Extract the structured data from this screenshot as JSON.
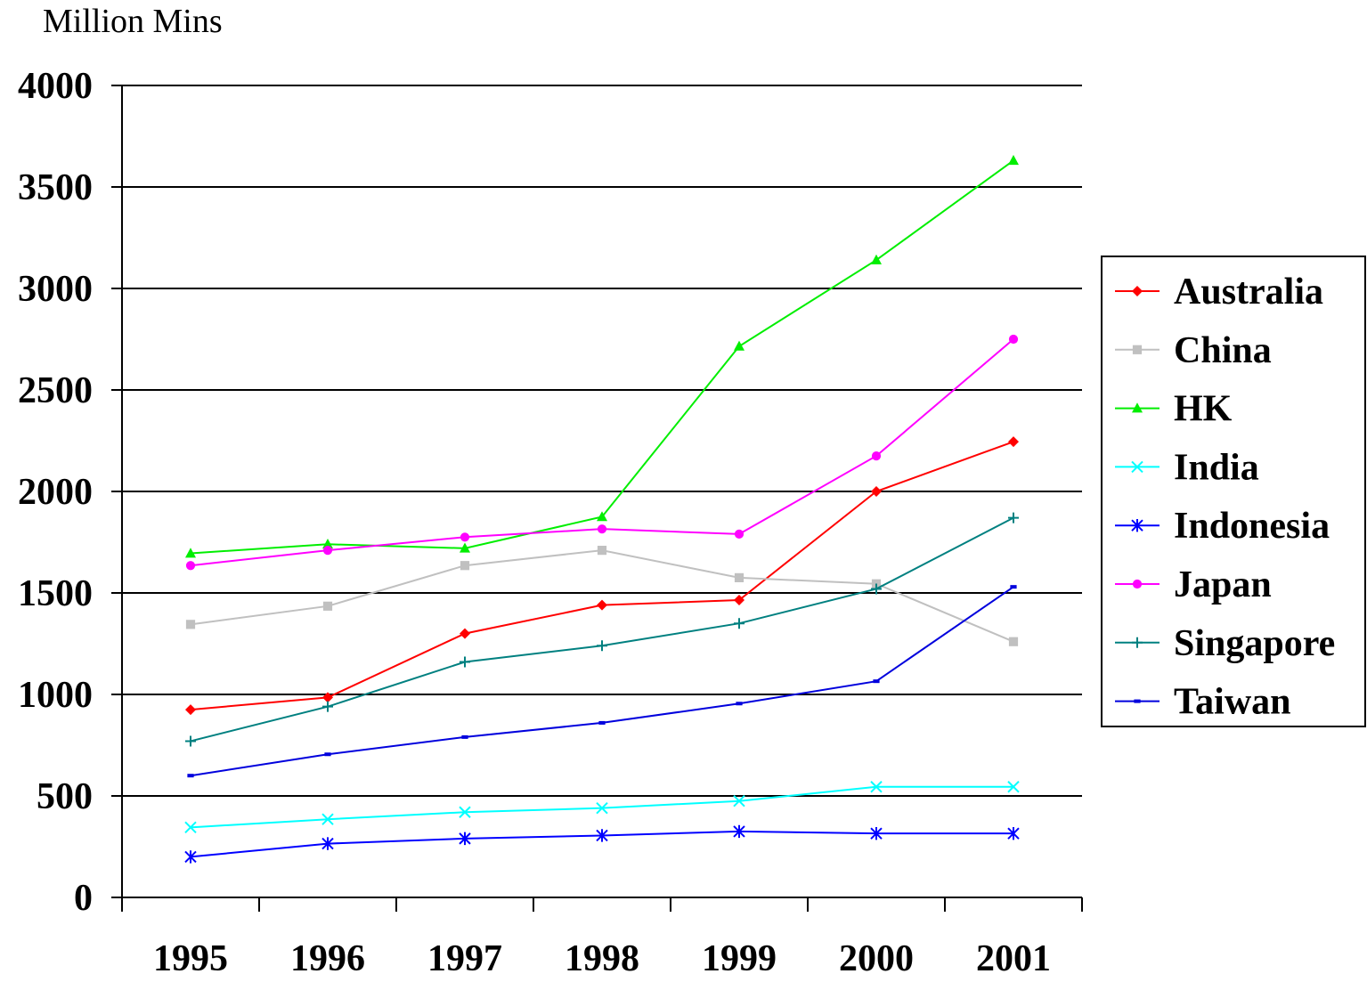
{
  "chart_data": {
    "type": "line",
    "title": "",
    "ylabel": "Million Mins",
    "xlabel": "",
    "categories": [
      "1995",
      "1996",
      "1997",
      "1998",
      "1999",
      "2000",
      "2001"
    ],
    "ylim": [
      0,
      4000
    ],
    "yticks": [
      0,
      500,
      1000,
      1500,
      2000,
      2500,
      3000,
      3500,
      4000
    ],
    "ytick_labels": [
      "0",
      "500",
      "1000",
      "1500",
      "2000",
      "2500",
      "3000",
      "3500",
      "4000"
    ],
    "grid": "horizontal",
    "legend_position": "right",
    "series": [
      {
        "name": "Australia",
        "color": "#ff0000",
        "marker": "diamond",
        "values": [
          925,
          985,
          1300,
          1440,
          1465,
          2000,
          2245
        ]
      },
      {
        "name": "China",
        "color": "#c0c0c0",
        "marker": "square",
        "values": [
          1345,
          1435,
          1635,
          1710,
          1575,
          1545,
          1260
        ]
      },
      {
        "name": "HK",
        "color": "#00ee00",
        "marker": "triangle",
        "values": [
          1695,
          1740,
          1720,
          1875,
          2715,
          3140,
          3630
        ]
      },
      {
        "name": "India",
        "color": "#00ffff",
        "marker": "x",
        "values": [
          345,
          385,
          420,
          440,
          475,
          545,
          545
        ]
      },
      {
        "name": "Indonesia",
        "color": "#0000ff",
        "marker": "asterisk",
        "values": [
          200,
          265,
          290,
          305,
          325,
          315,
          315
        ]
      },
      {
        "name": "Japan",
        "color": "#ff00ff",
        "marker": "circle",
        "values": [
          1635,
          1710,
          1775,
          1815,
          1790,
          2175,
          2750
        ]
      },
      {
        "name": "Singapore",
        "color": "#008080",
        "marker": "plus",
        "values": [
          770,
          940,
          1160,
          1240,
          1350,
          1520,
          1870
        ]
      },
      {
        "name": "Taiwan",
        "color": "#0000dd",
        "marker": "dash",
        "values": [
          600,
          705,
          790,
          860,
          955,
          1065,
          1530
        ]
      }
    ]
  }
}
